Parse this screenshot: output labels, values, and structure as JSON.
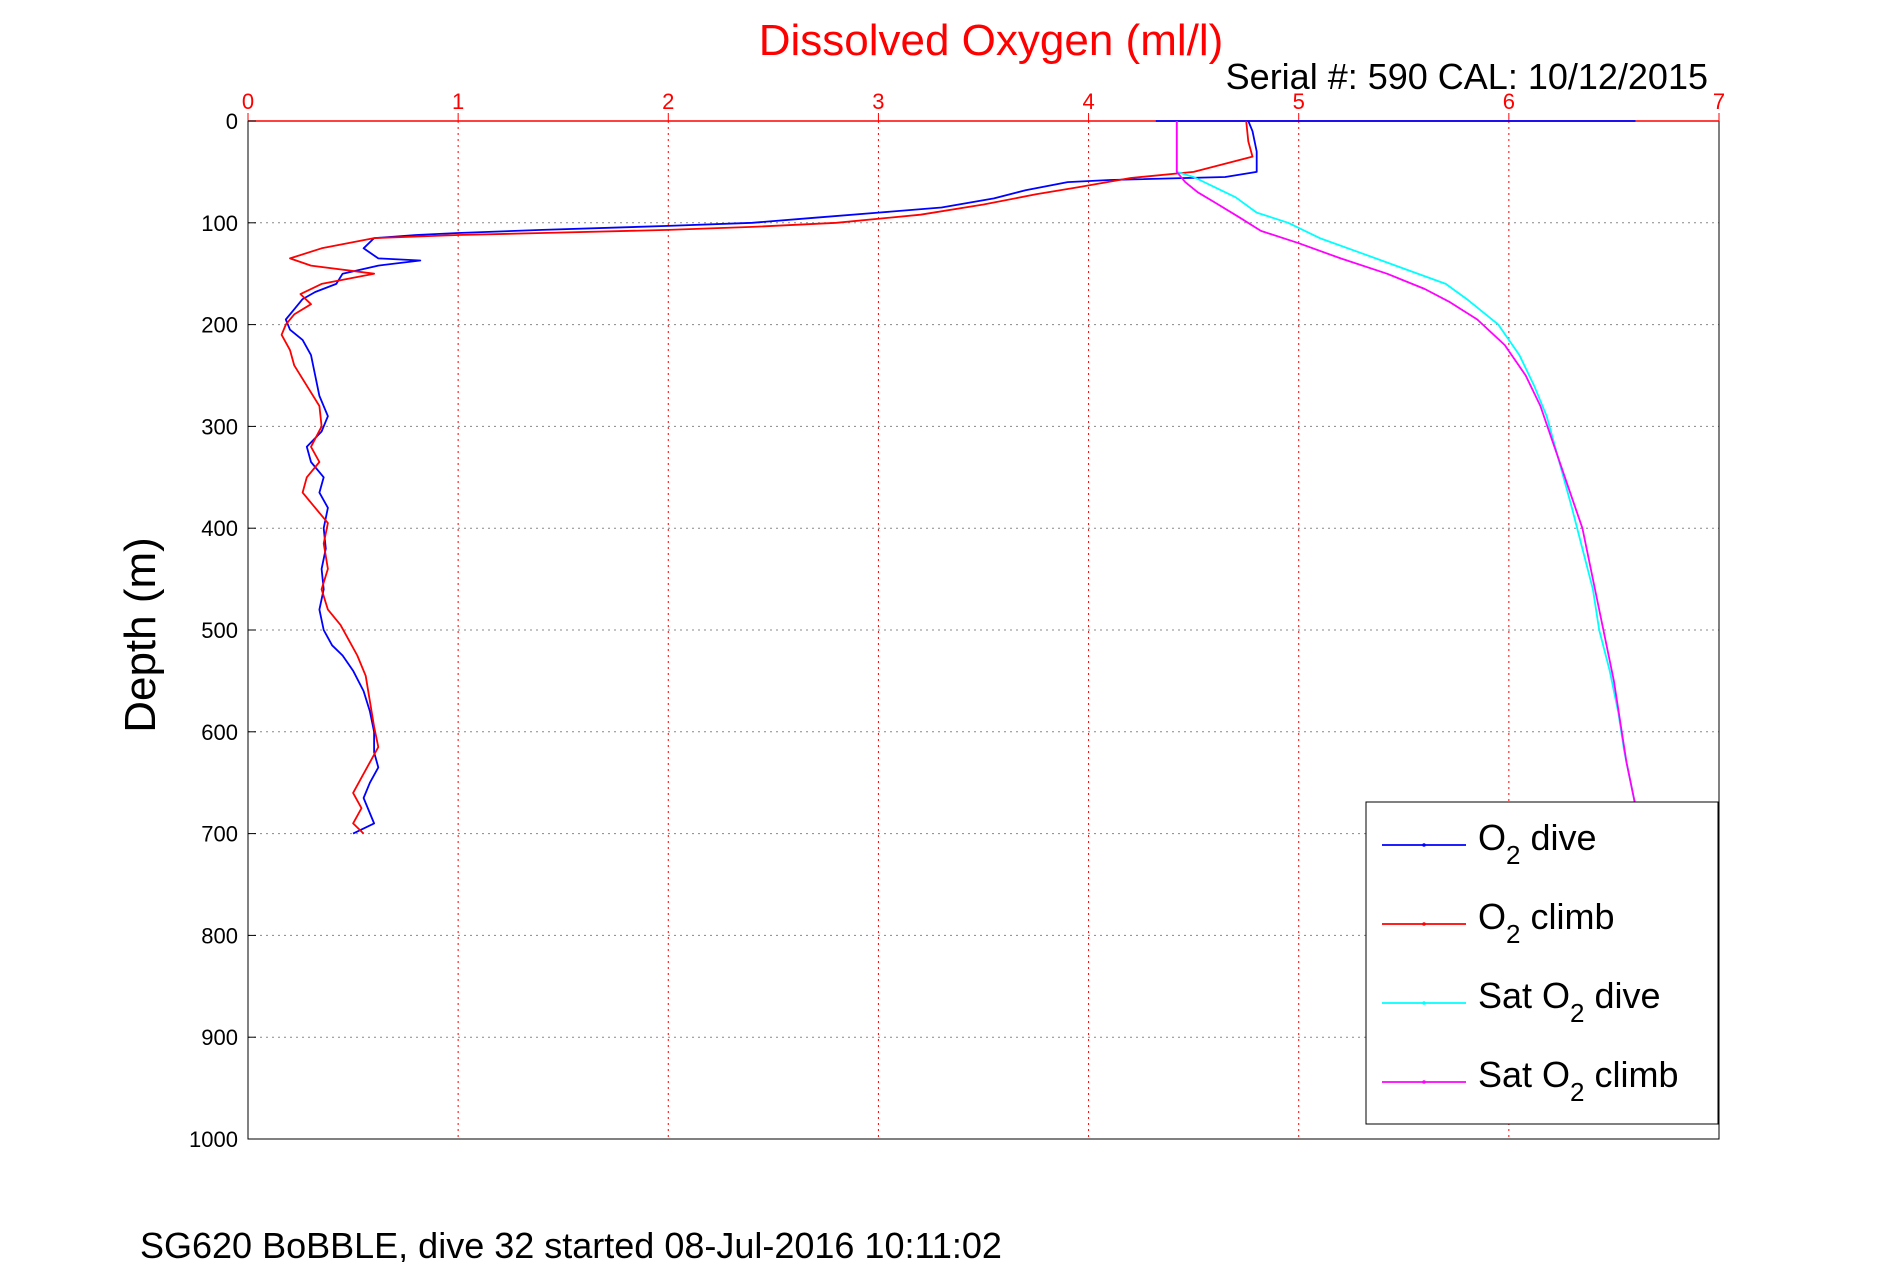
{
  "chart_data": {
    "type": "line",
    "title": "Dissolved Oxygen (ml/l)",
    "subtitle": "Serial #: 590  CAL: 10/12/2015",
    "footer": "SG620 BoBBLE, dive 32 started 08-Jul-2016 10:11:02",
    "ylabel": "Depth (m)",
    "xlim": [
      0,
      7
    ],
    "ylim": [
      0,
      1000
    ],
    "y_reversed": true,
    "x_axis_position": "top",
    "x_ticks": [
      "0",
      "1",
      "2",
      "3",
      "4",
      "5",
      "6",
      "7"
    ],
    "y_ticks": [
      "0",
      "100",
      "200",
      "300",
      "400",
      "500",
      "600",
      "700",
      "800",
      "900",
      "1000"
    ],
    "grid": true,
    "legend_position": "bottom-right",
    "colors": {
      "title": "#ff0000",
      "x_axis": "#ff0000",
      "grid": "#888888",
      "x_grid": "#ff0000"
    },
    "series": [
      {
        "name": "O2 dive",
        "legend_base": "O",
        "legend_sub": "2",
        "legend_suffix": " dive",
        "color": "#0000ff",
        "points": [
          [
            4.32,
            0
          ],
          [
            6.6,
            0
          ],
          [
            4.76,
            0
          ],
          [
            4.78,
            10
          ],
          [
            4.8,
            30
          ],
          [
            4.8,
            50
          ],
          [
            4.65,
            55
          ],
          [
            4.1,
            58
          ],
          [
            3.9,
            60
          ],
          [
            3.7,
            68
          ],
          [
            3.55,
            76
          ],
          [
            3.3,
            85
          ],
          [
            3.0,
            90
          ],
          [
            2.7,
            95
          ],
          [
            2.4,
            100
          ],
          [
            2.0,
            103
          ],
          [
            1.4,
            107
          ],
          [
            1.0,
            110
          ],
          [
            0.8,
            112
          ],
          [
            0.6,
            115
          ],
          [
            0.55,
            125
          ],
          [
            0.62,
            135
          ],
          [
            0.82,
            137
          ],
          [
            0.62,
            142
          ],
          [
            0.45,
            150
          ],
          [
            0.42,
            160
          ],
          [
            0.32,
            168
          ],
          [
            0.26,
            175
          ],
          [
            0.22,
            185
          ],
          [
            0.18,
            195
          ],
          [
            0.2,
            205
          ],
          [
            0.26,
            215
          ],
          [
            0.3,
            230
          ],
          [
            0.32,
            250
          ],
          [
            0.34,
            270
          ],
          [
            0.38,
            290
          ],
          [
            0.35,
            305
          ],
          [
            0.28,
            320
          ],
          [
            0.3,
            335
          ],
          [
            0.36,
            350
          ],
          [
            0.34,
            365
          ],
          [
            0.38,
            380
          ],
          [
            0.36,
            400
          ],
          [
            0.37,
            420
          ],
          [
            0.35,
            440
          ],
          [
            0.36,
            460
          ],
          [
            0.34,
            480
          ],
          [
            0.36,
            500
          ],
          [
            0.4,
            515
          ],
          [
            0.45,
            525
          ],
          [
            0.5,
            540
          ],
          [
            0.55,
            560
          ],
          [
            0.58,
            580
          ],
          [
            0.6,
            600
          ],
          [
            0.6,
            620
          ],
          [
            0.62,
            635
          ],
          [
            0.58,
            650
          ],
          [
            0.55,
            665
          ],
          [
            0.6,
            690
          ],
          [
            0.5,
            700
          ]
        ]
      },
      {
        "name": "O2 climb",
        "legend_base": "O",
        "legend_sub": "2",
        "legend_suffix": " climb",
        "color": "#ff0000",
        "points": [
          [
            4.75,
            0
          ],
          [
            4.76,
            20
          ],
          [
            4.78,
            35
          ],
          [
            4.5,
            50
          ],
          [
            4.2,
            56
          ],
          [
            3.95,
            65
          ],
          [
            3.75,
            72
          ],
          [
            3.5,
            82
          ],
          [
            3.2,
            92
          ],
          [
            2.8,
            100
          ],
          [
            2.4,
            104
          ],
          [
            2.0,
            107
          ],
          [
            1.4,
            110
          ],
          [
            1.0,
            112
          ],
          [
            0.6,
            115
          ],
          [
            0.35,
            125
          ],
          [
            0.2,
            135
          ],
          [
            0.3,
            142
          ],
          [
            0.6,
            150
          ],
          [
            0.35,
            160
          ],
          [
            0.25,
            170
          ],
          [
            0.3,
            180
          ],
          [
            0.22,
            190
          ],
          [
            0.18,
            200
          ],
          [
            0.16,
            210
          ],
          [
            0.2,
            225
          ],
          [
            0.22,
            240
          ],
          [
            0.28,
            260
          ],
          [
            0.34,
            280
          ],
          [
            0.35,
            300
          ],
          [
            0.3,
            320
          ],
          [
            0.34,
            335
          ],
          [
            0.28,
            350
          ],
          [
            0.26,
            365
          ],
          [
            0.32,
            380
          ],
          [
            0.38,
            395
          ],
          [
            0.36,
            415
          ],
          [
            0.38,
            440
          ],
          [
            0.35,
            460
          ],
          [
            0.38,
            480
          ],
          [
            0.44,
            495
          ],
          [
            0.48,
            510
          ],
          [
            0.52,
            525
          ],
          [
            0.56,
            545
          ],
          [
            0.58,
            570
          ],
          [
            0.6,
            595
          ],
          [
            0.62,
            615
          ],
          [
            0.58,
            630
          ],
          [
            0.54,
            645
          ],
          [
            0.5,
            660
          ],
          [
            0.54,
            675
          ],
          [
            0.5,
            690
          ],
          [
            0.55,
            700
          ]
        ]
      },
      {
        "name": "Sat O2 dive",
        "legend_base": "Sat O",
        "legend_sub": "2",
        "legend_suffix": " dive",
        "color": "#00ffff",
        "points": [
          [
            4.42,
            0
          ],
          [
            4.42,
            50
          ],
          [
            4.5,
            55
          ],
          [
            4.6,
            65
          ],
          [
            4.7,
            75
          ],
          [
            4.8,
            90
          ],
          [
            4.95,
            100
          ],
          [
            5.1,
            115
          ],
          [
            5.3,
            130
          ],
          [
            5.5,
            145
          ],
          [
            5.7,
            160
          ],
          [
            5.8,
            175
          ],
          [
            5.95,
            200
          ],
          [
            6.05,
            230
          ],
          [
            6.12,
            260
          ],
          [
            6.18,
            290
          ],
          [
            6.22,
            320
          ],
          [
            6.26,
            350
          ],
          [
            6.3,
            380
          ],
          [
            6.35,
            420
          ],
          [
            6.4,
            460
          ],
          [
            6.43,
            500
          ],
          [
            6.48,
            540
          ],
          [
            6.52,
            580
          ],
          [
            6.55,
            620
          ],
          [
            6.58,
            650
          ],
          [
            6.6,
            670
          ]
        ]
      },
      {
        "name": "Sat O2 climb",
        "legend_base": "Sat O",
        "legend_sub": "2",
        "legend_suffix": " climb",
        "color": "#ff00ff",
        "points": [
          [
            4.42,
            0
          ],
          [
            4.42,
            50
          ],
          [
            4.46,
            60
          ],
          [
            4.52,
            70
          ],
          [
            4.6,
            80
          ],
          [
            4.72,
            95
          ],
          [
            4.82,
            108
          ],
          [
            5.0,
            120
          ],
          [
            5.2,
            135
          ],
          [
            5.42,
            150
          ],
          [
            5.6,
            165
          ],
          [
            5.72,
            178
          ],
          [
            5.85,
            195
          ],
          [
            5.98,
            220
          ],
          [
            6.08,
            250
          ],
          [
            6.15,
            280
          ],
          [
            6.2,
            310
          ],
          [
            6.25,
            340
          ],
          [
            6.3,
            370
          ],
          [
            6.35,
            400
          ],
          [
            6.38,
            430
          ],
          [
            6.42,
            470
          ],
          [
            6.46,
            510
          ],
          [
            6.5,
            550
          ],
          [
            6.53,
            590
          ],
          [
            6.56,
            630
          ],
          [
            6.6,
            670
          ]
        ]
      }
    ]
  }
}
